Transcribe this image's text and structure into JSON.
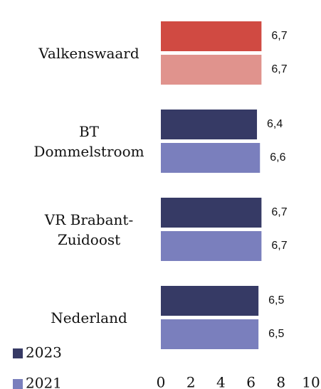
{
  "chart_data": {
    "type": "bar",
    "orientation": "horizontal",
    "categories": [
      "Valkenswaard",
      "BT Dommelstroom",
      "VR Brabant-Zuidoost",
      "Nederland"
    ],
    "series": [
      {
        "name": "2023",
        "color": "#363a65",
        "colors": [
          "#d04a42",
          "#363a65",
          "#363a65",
          "#363a65"
        ],
        "values": [
          6.7,
          6.4,
          6.7,
          6.5
        ],
        "value_labels": [
          "6,7",
          "6,4",
          "6,7",
          "6,5"
        ]
      },
      {
        "name": "2021",
        "color": "#7a7fbd",
        "colors": [
          "#e0938d",
          "#7a7fbd",
          "#7a7fbd",
          "#7a7fbd"
        ],
        "values": [
          6.7,
          6.6,
          6.7,
          6.5
        ],
        "value_labels": [
          "6,7",
          "6,6",
          "6,7",
          "6,5"
        ]
      }
    ],
    "xlim": [
      0,
      10
    ],
    "xticks": [
      0,
      2,
      4,
      6,
      8,
      10
    ],
    "grid": false,
    "legend": "bottom-left"
  }
}
